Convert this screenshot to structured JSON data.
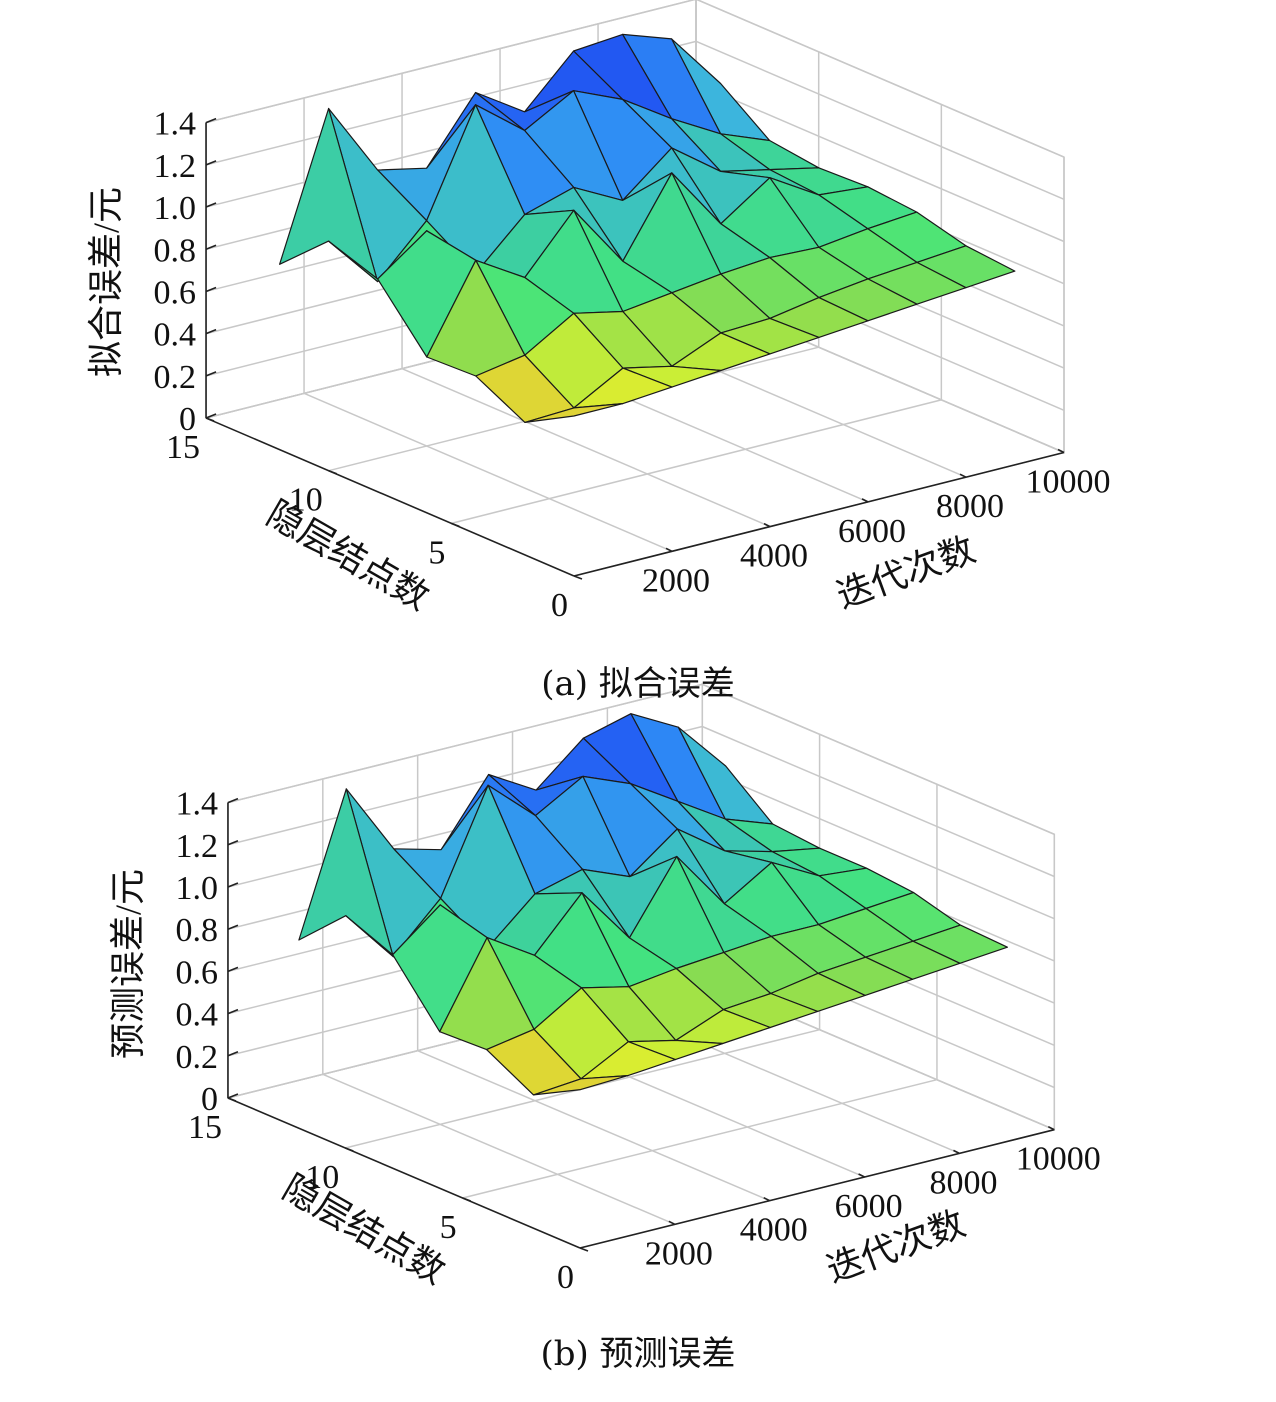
{
  "colors": {
    "background": "#ffffff",
    "axis": "#222222",
    "grid": "#c8c8c8",
    "edge": "#1a1a1a",
    "colormap": [
      "#1c0ed6",
      "#2257f2",
      "#2e8cf5",
      "#3cb6dc",
      "#3ccca6",
      "#44e57c",
      "#8bdc50",
      "#d8f230",
      "#e9a83c"
    ]
  },
  "chart_data": [
    {
      "type": "surface3d",
      "caption": "(a) 拟合误差",
      "zlabel": "拟合误差/元",
      "xlabel": "隐层结点数",
      "ylabel": "迭代次数",
      "x_ticks": [
        "15",
        "10",
        "5",
        "0"
      ],
      "y_ticks": [
        "2000",
        "4000",
        "6000",
        "8000",
        "10000"
      ],
      "z_ticks": [
        "0",
        "0.2",
        "0.4",
        "0.6",
        "0.8",
        "1.0",
        "1.2",
        "1.4"
      ],
      "xlim": [
        0,
        15
      ],
      "ylim": [
        0,
        10000
      ],
      "zlim": [
        0,
        1.4
      ],
      "hidden_nodes": [
        14,
        12,
        10,
        8,
        6,
        4,
        2
      ],
      "iterations": [
        1000,
        2000,
        3000,
        4000,
        5000,
        6000,
        7000,
        8000,
        9000,
        10000
      ],
      "z": [
        [
          0.72,
          1.4,
          1.05,
          1.0,
          1.3,
          1.15,
          1.38,
          1.4,
          1.32,
          1.05
        ],
        [
          0.93,
          0.68,
          0.91,
          1.4,
          1.22,
          1.35,
          1.25,
          1.1,
          0.97,
          0.88
        ],
        [
          0.85,
          1.02,
          0.76,
          0.98,
          1.05,
          0.93,
          1.12,
          0.95,
          0.9,
          0.85
        ],
        [
          0.58,
          0.98,
          0.84,
          1.1,
          0.8,
          1.16,
          0.86,
          1.02,
          0.88,
          0.86
        ],
        [
          0.59,
          0.63,
          0.77,
          0.72,
          0.75,
          0.78,
          0.8,
          0.79,
          0.82,
          0.84
        ],
        [
          0.47,
          0.48,
          0.61,
          0.56,
          0.66,
          0.67,
          0.71,
          0.74,
          0.76,
          0.78
        ],
        [
          0.6,
          0.6,
          0.62,
          0.64,
          0.66,
          0.68,
          0.7,
          0.72,
          0.74,
          0.76
        ]
      ]
    },
    {
      "type": "surface3d",
      "caption": "(b) 预测误差",
      "zlabel": "预测误差/元",
      "xlabel": "隐层结点数",
      "ylabel": "迭代次数",
      "x_ticks": [
        "15",
        "10",
        "5",
        "0"
      ],
      "y_ticks": [
        "2000",
        "4000",
        "6000",
        "8000",
        "10000"
      ],
      "z_ticks": [
        "0",
        "0.2",
        "0.4",
        "0.6",
        "0.8",
        "1.0",
        "1.2",
        "1.4"
      ],
      "xlim": [
        0,
        15
      ],
      "ylim": [
        0,
        10000
      ],
      "zlim": [
        0,
        1.4
      ],
      "hidden_nodes": [
        14,
        12,
        10,
        8,
        6,
        4,
        2
      ],
      "iterations": [
        1000,
        2000,
        3000,
        4000,
        5000,
        6000,
        7000,
        8000,
        9000,
        10000
      ],
      "z": [
        [
          0.74,
          1.4,
          1.06,
          1.0,
          1.3,
          1.17,
          1.36,
          1.42,
          1.3,
          1.06
        ],
        [
          0.95,
          0.7,
          0.92,
          1.4,
          1.2,
          1.33,
          1.24,
          1.1,
          0.96,
          0.88
        ],
        [
          0.86,
          1.04,
          0.78,
          0.98,
          1.04,
          0.95,
          1.12,
          0.96,
          0.9,
          0.86
        ],
        [
          0.59,
          0.98,
          0.84,
          1.08,
          0.81,
          1.14,
          0.86,
          1.0,
          0.88,
          0.86
        ],
        [
          0.6,
          0.64,
          0.78,
          0.73,
          0.76,
          0.78,
          0.8,
          0.8,
          0.82,
          0.84
        ],
        [
          0.48,
          0.5,
          0.62,
          0.57,
          0.66,
          0.68,
          0.72,
          0.74,
          0.76,
          0.78
        ],
        [
          0.6,
          0.61,
          0.63,
          0.65,
          0.67,
          0.69,
          0.71,
          0.73,
          0.75,
          0.77
        ]
      ]
    }
  ]
}
